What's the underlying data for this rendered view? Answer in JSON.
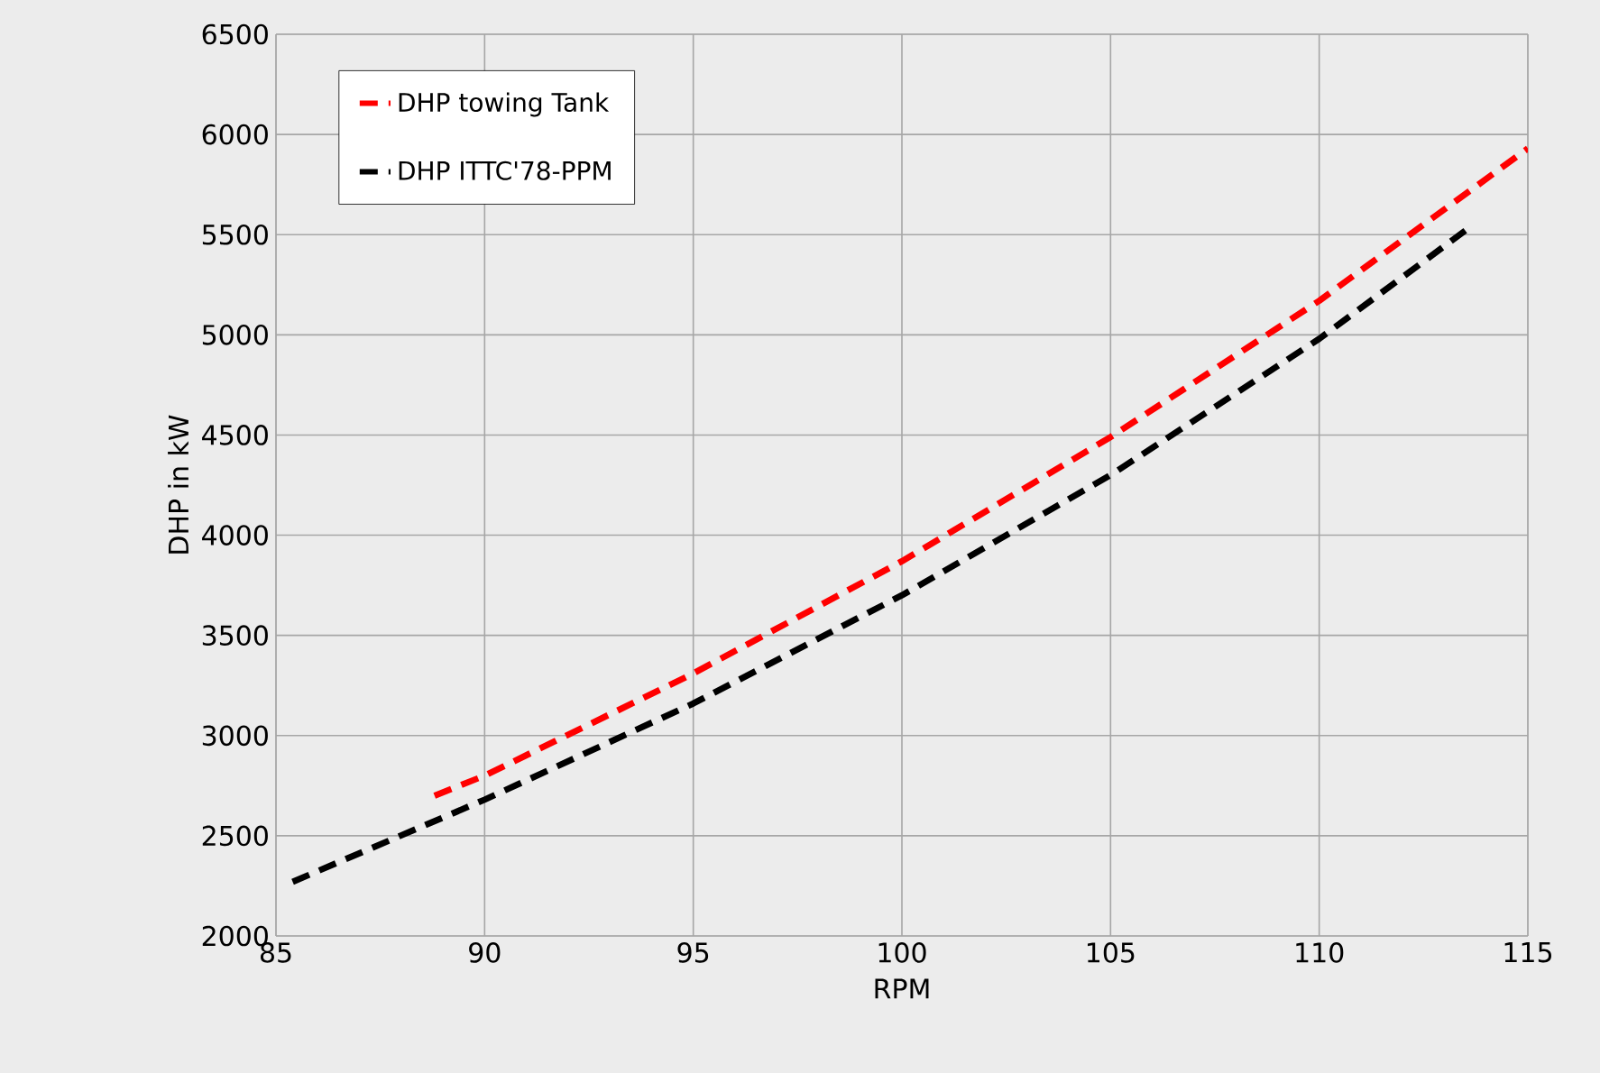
{
  "chart_data": {
    "type": "line",
    "xlabel": "RPM",
    "ylabel": "DHP in kW",
    "xlim": [
      85,
      115
    ],
    "ylim": [
      2000,
      6500
    ],
    "xticks": [
      85,
      90,
      95,
      100,
      105,
      110,
      115
    ],
    "yticks": [
      2000,
      2500,
      3000,
      3500,
      4000,
      4500,
      5000,
      5500,
      6000,
      6500
    ],
    "grid": true,
    "legend": "top left",
    "line_style": "dashed",
    "marker": "none",
    "series": [
      {
        "name": "DHP towing Tank",
        "color": "#ff0000",
        "x": [
          88.8,
          90,
          95,
          100,
          105,
          110,
          115
        ],
        "values": [
          2700,
          2800,
          3310,
          3870,
          4490,
          5170,
          5930
        ]
      },
      {
        "name": "DHP ITTC'78-PPM",
        "color": "#000000",
        "x": [
          85.4,
          90,
          95,
          100,
          105,
          110,
          113.5
        ],
        "values": [
          2270,
          2680,
          3160,
          3700,
          4300,
          4980,
          5520
        ]
      }
    ]
  }
}
